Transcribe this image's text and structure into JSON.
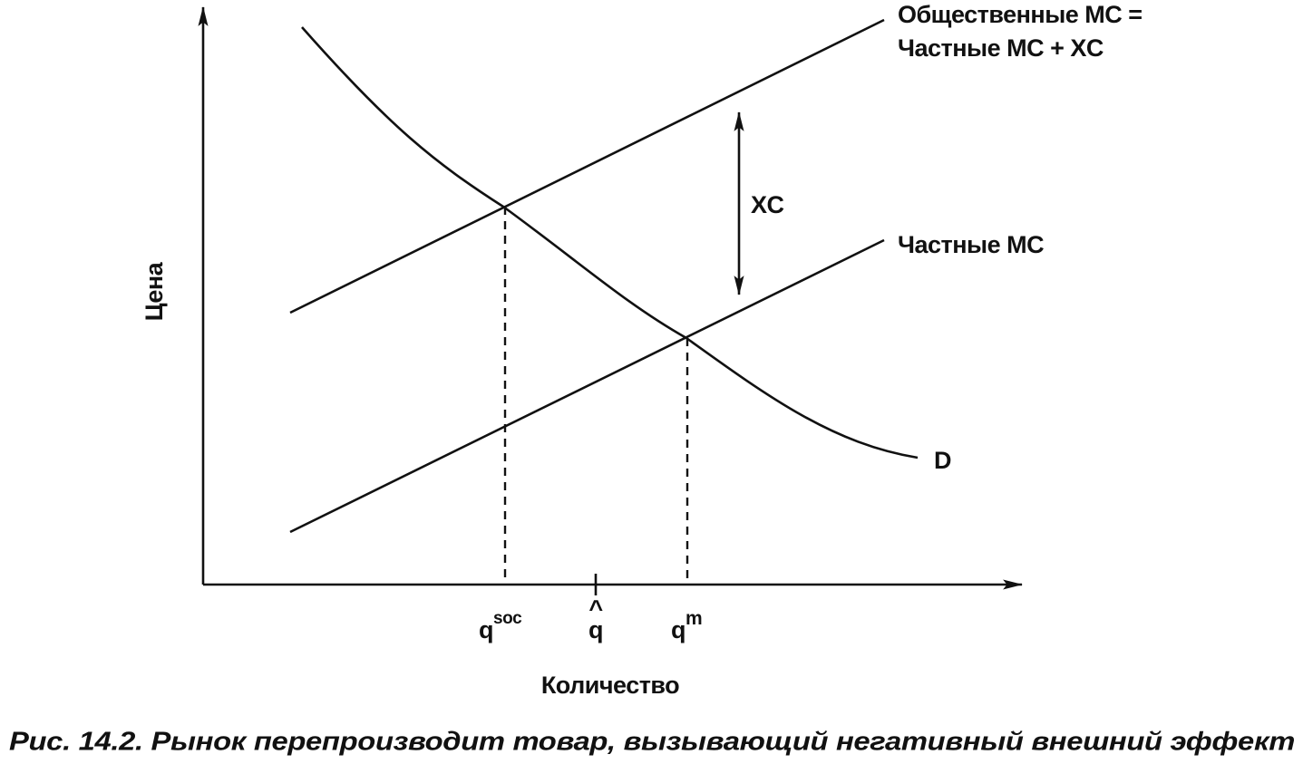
{
  "axes": {
    "y_label": "Цена",
    "x_label": "Количество"
  },
  "curves": {
    "social_mc": {
      "line1": "Общественные MC =",
      "line2": "Частные MC + XC"
    },
    "private_mc": {
      "label": "Частные MC"
    },
    "demand": {
      "label": "D"
    },
    "external_cost": {
      "label": "XC"
    }
  },
  "x_markers": [
    {
      "base": "q",
      "superscript": "soc"
    },
    {
      "base": "q",
      "accent": "^"
    },
    {
      "base": "q",
      "superscript": "m"
    }
  ],
  "caption": "Рис. 14.2. Рынок перепроизводит товар, вызывающий негативный внешний эффект"
}
